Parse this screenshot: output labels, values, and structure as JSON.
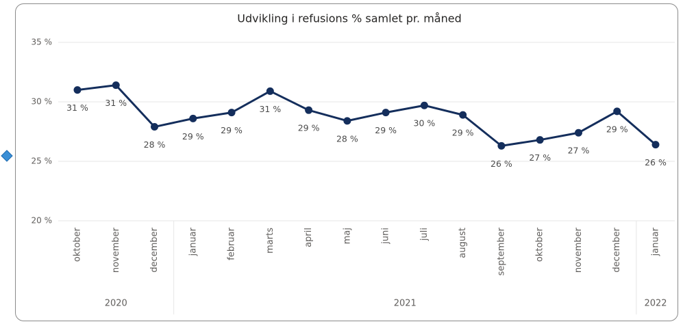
{
  "chart_data": {
    "type": "line",
    "title": "Udvikling i refusions % samlet pr. måned",
    "groups": [
      {
        "label": "2020",
        "months": [
          "oktober",
          "november",
          "december"
        ]
      },
      {
        "label": "2021",
        "months": [
          "januar",
          "februar",
          "marts",
          "april",
          "maj",
          "juni",
          "juli",
          "august",
          "september",
          "oktober",
          "november",
          "december"
        ]
      },
      {
        "label": "2022",
        "months": [
          "januar"
        ]
      }
    ],
    "series": [
      {
        "color": "#142e5c",
        "values": [
          31.0,
          31.4,
          27.9,
          28.6,
          29.1,
          30.9,
          29.3,
          28.4,
          29.1,
          29.7,
          28.9,
          26.3,
          26.8,
          27.4,
          29.2,
          26.4
        ],
        "value_labels": [
          "31 %",
          "31 %",
          "28 %",
          "29 %",
          "29 %",
          "31 %",
          "29 %",
          "28 %",
          "29 %",
          "30 %",
          "29 %",
          "26 %",
          "27 %",
          "27 %",
          "29 %",
          "26 %"
        ]
      }
    ],
    "ylim": [
      20,
      35
    ],
    "yticks": [
      {
        "value": 20,
        "label": "20 %"
      },
      {
        "value": 25,
        "label": "25 %"
      },
      {
        "value": 30,
        "label": "30 %"
      },
      {
        "value": 35,
        "label": "35 %"
      }
    ],
    "grid": true
  }
}
